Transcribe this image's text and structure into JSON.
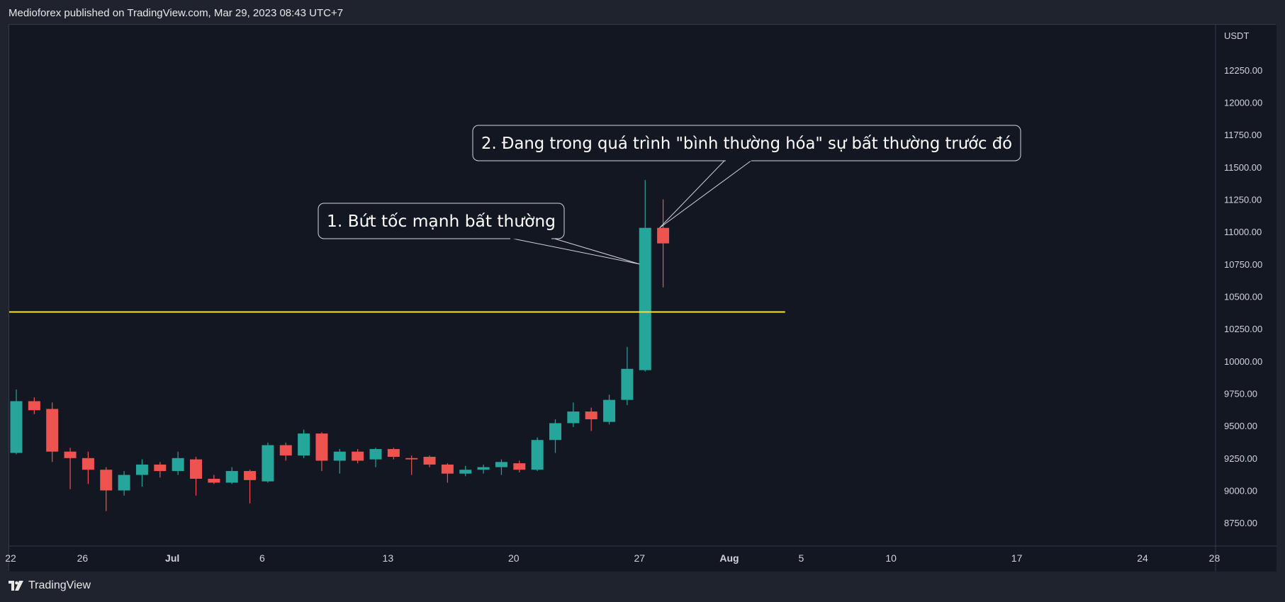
{
  "header": {
    "text": "Medioforex published on TradingView.com, Mar 29, 2023 08:43 UTC+7"
  },
  "footer": {
    "brand": "TradingView"
  },
  "colors": {
    "background": "#131722",
    "up": "#26a69a",
    "down": "#ef5350",
    "level_line": "#f7e13c",
    "axis_text": "#d1d4dc"
  },
  "chart_data": {
    "type": "candlestick",
    "y_unit": "USDT",
    "ylim": [
      8570,
      12600
    ],
    "y_ticks": [
      "12250.00",
      "12000.00",
      "11750.00",
      "11500.00",
      "11250.00",
      "11000.00",
      "10750.00",
      "10500.00",
      "10250.00",
      "10000.00",
      "9750.00",
      "9500.00",
      "9250.00",
      "9000.00",
      "8750.00"
    ],
    "x_ticks": [
      {
        "label": "22",
        "day": 0
      },
      {
        "label": "26",
        "day": 4
      },
      {
        "label": "Jul",
        "day": 9
      },
      {
        "label": "6",
        "day": 14
      },
      {
        "label": "13",
        "day": 21
      },
      {
        "label": "20",
        "day": 28
      },
      {
        "label": "27",
        "day": 35
      },
      {
        "label": "Aug",
        "day": 40
      },
      {
        "label": "5",
        "day": 44
      },
      {
        "label": "10",
        "day": 49
      },
      {
        "label": "17",
        "day": 56
      },
      {
        "label": "24",
        "day": 63
      },
      {
        "label": "28",
        "day": 67
      }
    ],
    "candles": [
      {
        "day": 0,
        "o": 9290,
        "h": 9780,
        "l": 9280,
        "c": 9690
      },
      {
        "day": 1,
        "o": 9690,
        "h": 9720,
        "l": 9590,
        "c": 9620
      },
      {
        "day": 2,
        "o": 9630,
        "h": 9680,
        "l": 9220,
        "c": 9300
      },
      {
        "day": 3,
        "o": 9300,
        "h": 9330,
        "l": 9010,
        "c": 9250
      },
      {
        "day": 4,
        "o": 9250,
        "h": 9300,
        "l": 9050,
        "c": 9160
      },
      {
        "day": 5,
        "o": 9160,
        "h": 9180,
        "l": 8840,
        "c": 9000
      },
      {
        "day": 6,
        "o": 9000,
        "h": 9150,
        "l": 8960,
        "c": 9120
      },
      {
        "day": 7,
        "o": 9120,
        "h": 9240,
        "l": 9030,
        "c": 9200
      },
      {
        "day": 8,
        "o": 9200,
        "h": 9220,
        "l": 9100,
        "c": 9150
      },
      {
        "day": 9,
        "o": 9150,
        "h": 9300,
        "l": 9120,
        "c": 9250
      },
      {
        "day": 10,
        "o": 9240,
        "h": 9260,
        "l": 8960,
        "c": 9090
      },
      {
        "day": 11,
        "o": 9090,
        "h": 9120,
        "l": 9050,
        "c": 9060
      },
      {
        "day": 12,
        "o": 9060,
        "h": 9180,
        "l": 9050,
        "c": 9150
      },
      {
        "day": 13,
        "o": 9150,
        "h": 9160,
        "l": 8900,
        "c": 9080
      },
      {
        "day": 14,
        "o": 9070,
        "h": 9370,
        "l": 9060,
        "c": 9350
      },
      {
        "day": 15,
        "o": 9350,
        "h": 9370,
        "l": 9230,
        "c": 9270
      },
      {
        "day": 16,
        "o": 9270,
        "h": 9470,
        "l": 9250,
        "c": 9440
      },
      {
        "day": 17,
        "o": 9440,
        "h": 9450,
        "l": 9150,
        "c": 9230
      },
      {
        "day": 18,
        "o": 9230,
        "h": 9320,
        "l": 9130,
        "c": 9300
      },
      {
        "day": 19,
        "o": 9300,
        "h": 9320,
        "l": 9210,
        "c": 9230
      },
      {
        "day": 20,
        "o": 9240,
        "h": 9330,
        "l": 9180,
        "c": 9320
      },
      {
        "day": 21,
        "o": 9320,
        "h": 9330,
        "l": 9240,
        "c": 9260
      },
      {
        "day": 22,
        "o": 9250,
        "h": 9270,
        "l": 9120,
        "c": 9240
      },
      {
        "day": 23,
        "o": 9260,
        "h": 9270,
        "l": 9180,
        "c": 9200
      },
      {
        "day": 24,
        "o": 9200,
        "h": 9210,
        "l": 9060,
        "c": 9130
      },
      {
        "day": 25,
        "o": 9130,
        "h": 9190,
        "l": 9110,
        "c": 9160
      },
      {
        "day": 26,
        "o": 9160,
        "h": 9200,
        "l": 9130,
        "c": 9180
      },
      {
        "day": 27,
        "o": 9180,
        "h": 9240,
        "l": 9120,
        "c": 9220
      },
      {
        "day": 28,
        "o": 9210,
        "h": 9230,
        "l": 9140,
        "c": 9160
      },
      {
        "day": 29,
        "o": 9160,
        "h": 9410,
        "l": 9150,
        "c": 9390
      },
      {
        "day": 30,
        "o": 9390,
        "h": 9550,
        "l": 9290,
        "c": 9520
      },
      {
        "day": 31,
        "o": 9520,
        "h": 9680,
        "l": 9490,
        "c": 9610
      },
      {
        "day": 32,
        "o": 9610,
        "h": 9640,
        "l": 9460,
        "c": 9550
      },
      {
        "day": 33,
        "o": 9530,
        "h": 9740,
        "l": 9510,
        "c": 9700
      },
      {
        "day": 34,
        "o": 9700,
        "h": 10110,
        "l": 9660,
        "c": 9940
      },
      {
        "day": 35,
        "o": 9930,
        "h": 11400,
        "l": 9920,
        "c": 11030
      },
      {
        "day": 36,
        "o": 11030,
        "h": 11250,
        "l": 10570,
        "c": 10910
      }
    ],
    "horizontal_line": {
      "value": 10380,
      "from_day": -0.5,
      "to_day": 43.5
    },
    "annotations": [
      {
        "text": "1. Bứt tốc mạnh bất thường",
        "target_day": 35
      },
      {
        "text": "2. Đang trong quá trình \"bình thường hóa\" sự bất thường trước đó",
        "target_day": 36
      }
    ]
  }
}
